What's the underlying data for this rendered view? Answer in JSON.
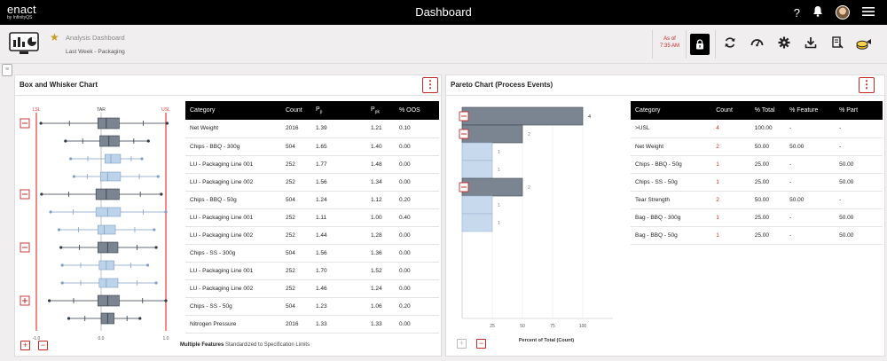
{
  "app": {
    "logo": "enact",
    "logo_sub": "by InfinityQS",
    "title": "Dashboard"
  },
  "topbar": {
    "help_icon": "question-icon",
    "bell_icon": "bell-icon",
    "menu_icon": "hamburger-icon"
  },
  "toolbar": {
    "title": "Analysis Dashboard",
    "subtitle": "Last Week - Packaging",
    "asof_label": "As of",
    "asof_time": "7:35 AM",
    "buttons": [
      "lock-icon",
      "refresh-icon",
      "gauge-icon",
      "gear-icon",
      "download-icon",
      "report-icon",
      "coins-icon"
    ]
  },
  "box_panel": {
    "title": "Box and Whisker Chart",
    "menu_label": "⋮",
    "footer_bold": "Multiple Features",
    "footer_text": "Standardized to Specification Limits",
    "columns": [
      "Category",
      "Count",
      "P",
      "P",
      "% OOS"
    ],
    "col_subs": [
      "",
      "",
      "p",
      "pk",
      ""
    ],
    "rows": [
      [
        "Net Weight",
        "2016",
        "1.39",
        "1.21",
        "0.10"
      ],
      [
        "Chips - BBQ - 300g",
        "504",
        "1.65",
        "1.40",
        "0.00"
      ],
      [
        "LU - Packaging Line 001",
        "252",
        "1.77",
        "1.48",
        "0.00"
      ],
      [
        "LU - Packaging Line 002",
        "252",
        "1.56",
        "1.34",
        "0.00"
      ],
      [
        "Chips - BBQ - 50g",
        "504",
        "1.24",
        "1.12",
        "0.20"
      ],
      [
        "LU - Packaging Line 001",
        "252",
        "1.11",
        "1.00",
        "0.40"
      ],
      [
        "LU - Packaging Line 002",
        "252",
        "1.44",
        "1.28",
        "0.00"
      ],
      [
        "Chips - SS - 300g",
        "504",
        "1.56",
        "1.36",
        "0.00"
      ],
      [
        "LU - Packaging Line 001",
        "252",
        "1.70",
        "1.52",
        "0.00"
      ],
      [
        "LU - Packaging Line 002",
        "252",
        "1.46",
        "1.24",
        "0.00"
      ],
      [
        "Chips - SS - 50g",
        "504",
        "1.23",
        "1.06",
        "0.20"
      ],
      [
        "Nitrogen Pressure",
        "2016",
        "1.33",
        "1.33",
        "0.00"
      ]
    ]
  },
  "pareto_panel": {
    "title": "Pareto Chart (Process Events)",
    "menu_label": "⋮",
    "columns": [
      "Category",
      "Count",
      "% Total",
      "% Feature",
      "% Part"
    ],
    "rows": [
      [
        ">USL",
        "4",
        "100.00",
        "-",
        "-"
      ],
      [
        "Net Weight",
        "2",
        "50.00",
        "50.00",
        "-"
      ],
      [
        "Chips - BBQ - 50g",
        "1",
        "25.00",
        "-",
        "50.00"
      ],
      [
        "Chips - SS - 50g",
        "1",
        "25.00",
        "-",
        "50.00"
      ],
      [
        "Tear Strength",
        "2",
        "50.00",
        "50.00",
        "-"
      ],
      [
        "Bag - BBQ - 300g",
        "1",
        "25.00",
        "-",
        "50.00"
      ],
      [
        "Bag - BBQ - 50g",
        "1",
        "25.00",
        "-",
        "50.00"
      ]
    ]
  },
  "chart_data": [
    {
      "type": "box",
      "title": "",
      "xlabel": "Multiple Features Standardized to Specification Limits",
      "xlim": [
        -1.0,
        1.0
      ],
      "xticks": [
        "-1.0",
        "0.0",
        "1.0"
      ],
      "reference_lines": [
        {
          "label": "LSL",
          "x": -1.0,
          "color": "#e53935"
        },
        {
          "label": "TAR",
          "x": 0.0,
          "color": "#999999"
        },
        {
          "label": "USL",
          "x": 1.0,
          "color": "#e53935"
        }
      ],
      "categories": [
        "Net Weight",
        "Chips - BBQ - 300g",
        "LU - Packaging Line 001",
        "LU - Packaging Line 002",
        "Chips - BBQ - 50g",
        "LU - Packaging Line 001",
        "LU - Packaging Line 002",
        "Chips - SS - 300g",
        "LU - Packaging Line 001",
        "LU - Packaging Line 002",
        "Chips - SS - 50g",
        "Nitrogen Pressure"
      ],
      "boxes": [
        {
          "min": -0.93,
          "q1": -0.05,
          "median": 0.08,
          "q3": 0.28,
          "max": 1.02,
          "group": true
        },
        {
          "min": -0.55,
          "q1": -0.02,
          "median": 0.12,
          "q3": 0.28,
          "max": 0.73,
          "group": true
        },
        {
          "min": -0.47,
          "q1": 0.06,
          "median": 0.15,
          "q3": 0.3,
          "max": 0.63,
          "group": false
        },
        {
          "min": -0.42,
          "q1": -0.01,
          "median": 0.1,
          "q3": 0.3,
          "max": 0.88,
          "group": false
        },
        {
          "min": -0.92,
          "q1": -0.08,
          "median": 0.08,
          "q3": 0.28,
          "max": 0.93,
          "group": true
        },
        {
          "min": -0.78,
          "q1": -0.08,
          "median": 0.1,
          "q3": 0.3,
          "max": 1.0,
          "group": false
        },
        {
          "min": -0.65,
          "q1": -0.05,
          "median": 0.05,
          "q3": 0.22,
          "max": 0.82,
          "group": false
        },
        {
          "min": -0.62,
          "q1": -0.05,
          "median": 0.1,
          "q3": 0.26,
          "max": 0.85,
          "group": true
        },
        {
          "min": -0.6,
          "q1": -0.03,
          "median": 0.08,
          "q3": 0.2,
          "max": 0.72,
          "group": false
        },
        {
          "min": -0.6,
          "q1": -0.03,
          "median": 0.08,
          "q3": 0.26,
          "max": 0.85,
          "group": false
        },
        {
          "min": -0.8,
          "q1": -0.05,
          "median": 0.1,
          "q3": 0.28,
          "max": 1.0,
          "group": true
        },
        {
          "min": -0.5,
          "q1": 0.0,
          "median": 0.1,
          "q3": 0.2,
          "max": 0.6,
          "group": true
        }
      ]
    },
    {
      "type": "bar",
      "orientation": "horizontal",
      "xlabel": "Percent of Total (Count)",
      "xticks": [
        25,
        50,
        75,
        100
      ],
      "xlim": [
        0,
        125
      ],
      "categories": [
        ">USL",
        "Net Weight",
        "Chips - BBQ - 50g",
        "Chips - SS - 50g",
        "Tear Strength",
        "Bag - BBQ - 300g",
        "Bag - BBQ - 50g"
      ],
      "values": [
        100,
        50,
        25,
        25,
        50,
        25,
        25
      ],
      "labels": [
        "4",
        "2",
        "1",
        "1",
        "2",
        "1",
        "1"
      ],
      "group": [
        true,
        true,
        false,
        false,
        true,
        false,
        false
      ]
    }
  ]
}
